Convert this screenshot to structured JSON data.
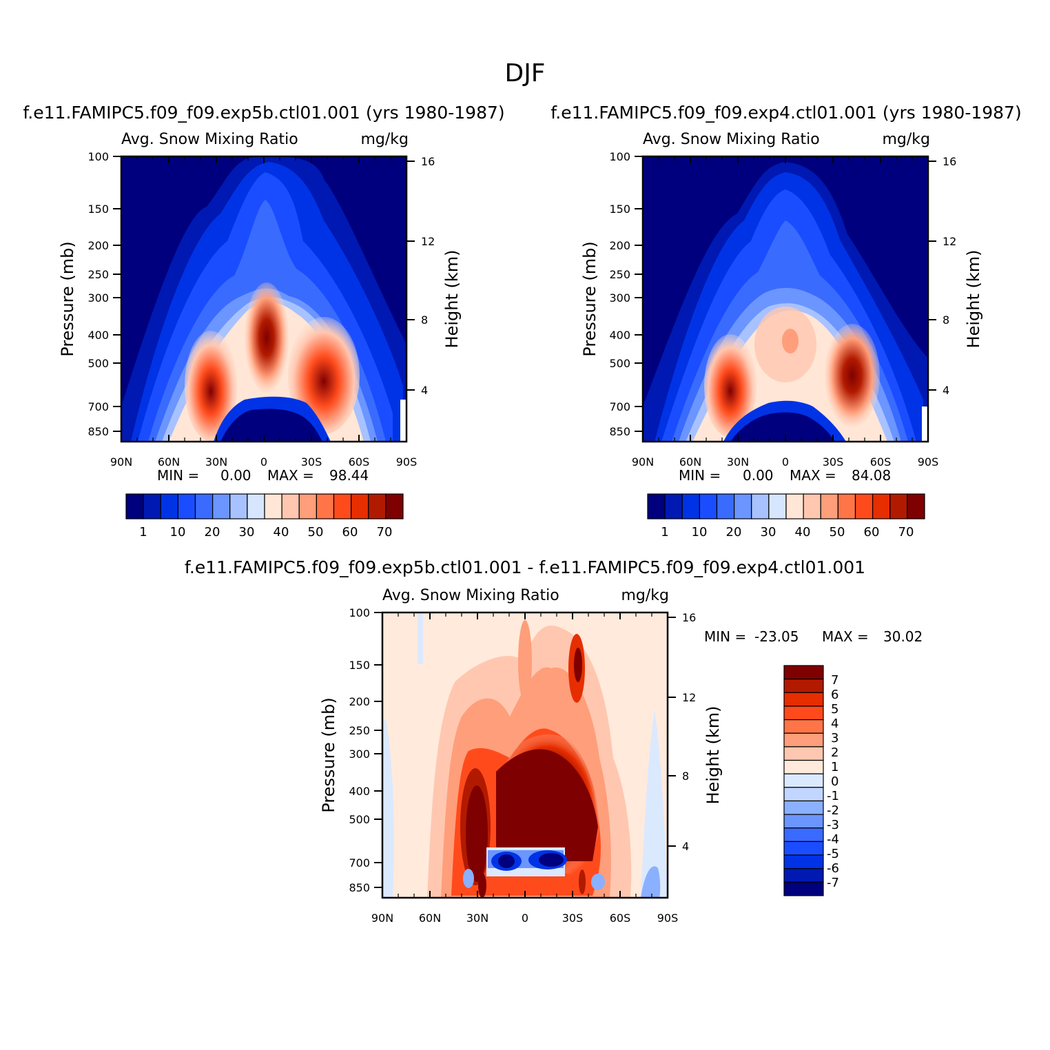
{
  "figure_title": "DJF",
  "colors": {
    "abs_levels": [
      "#00007f",
      "#0019b2",
      "#0033e5",
      "#1a4dff",
      "#3a6bff",
      "#6b95ff",
      "#a7c2ff",
      "#d6e6ff",
      "#ffe6d6",
      "#ffc7b0",
      "#ff9e7a",
      "#ff7548",
      "#ff4b1c",
      "#e62e00",
      "#b21a00",
      "#7f0000"
    ],
    "diff_levels": [
      "#00007f",
      "#0019b2",
      "#0033e5",
      "#1a4dff",
      "#3a6bff",
      "#6b95ff",
      "#8ab0ff",
      "#c2d6ff",
      "#dbe9ff",
      "#ffeadc",
      "#ffc7b0",
      "#ff9e7a",
      "#ff7548",
      "#ff4b1c",
      "#e62e00",
      "#b21a00",
      "#7f0000"
    ]
  },
  "chart_data": [
    {
      "type": "heatmap",
      "title": "f.e11.FAMIPC5.f09_f09.exp5b.ctl01.001 (yrs 1980-1987)",
      "left_subtitle": "Avg. Snow Mixing Ratio",
      "right_subtitle": "mg/kg",
      "xlabel": "",
      "ylabel": "Pressure (mb)",
      "ylabel_right": "Height (km)",
      "x_ticks": [
        "90N",
        "60N",
        "30N",
        "0",
        "30S",
        "60S",
        "90S"
      ],
      "y_ticks": [
        "100",
        "150",
        "200",
        "250",
        "300",
        "400",
        "500",
        "700",
        "850"
      ],
      "y_ticks_right": [
        "16",
        "12",
        "8",
        "4"
      ],
      "min_label": "MIN =",
      "min_value": "0.00",
      "max_label": "MAX =",
      "max_value": "98.44",
      "colorbar_labels": [
        "1",
        "10",
        "20",
        "30",
        "40",
        "50",
        "60",
        "70"
      ],
      "features": {
        "maxima_lat": [
          -35,
          0,
          35
        ],
        "peak_values": [
          70,
          75,
          80
        ],
        "near_zero_region": "0-700mb below 850 at equator"
      }
    },
    {
      "type": "heatmap",
      "title": "f.e11.FAMIPC5.f09_f09.exp4.ctl01.001 (yrs 1980-1987)",
      "left_subtitle": "Avg. Snow Mixing Ratio",
      "right_subtitle": "mg/kg",
      "xlabel": "",
      "ylabel": "Pressure (mb)",
      "ylabel_right": "Height (km)",
      "x_ticks": [
        "90N",
        "60N",
        "30N",
        "0",
        "30S",
        "60S",
        "90S"
      ],
      "y_ticks": [
        "100",
        "150",
        "200",
        "250",
        "300",
        "400",
        "500",
        "700",
        "850"
      ],
      "y_ticks_right": [
        "16",
        "12",
        "8",
        "4"
      ],
      "min_label": "MIN =",
      "min_value": "0.00",
      "max_label": "MAX =",
      "max_value": "84.08",
      "colorbar_labels": [
        "1",
        "10",
        "20",
        "30",
        "40",
        "50",
        "60",
        "70"
      ],
      "features": {
        "maxima_lat": [
          -40,
          40
        ],
        "peak_values": [
          70,
          75
        ]
      }
    },
    {
      "type": "heatmap",
      "title": "f.e11.FAMIPC5.f09_f09.exp5b.ctl01.001 - f.e11.FAMIPC5.f09_f09.exp4.ctl01.001",
      "left_subtitle": "Avg. Snow Mixing Ratio",
      "right_subtitle": "mg/kg",
      "xlabel": "",
      "ylabel": "Pressure (mb)",
      "ylabel_right": "Height (km)",
      "x_ticks": [
        "90N",
        "60N",
        "30N",
        "0",
        "30S",
        "60S",
        "90S"
      ],
      "y_ticks": [
        "100",
        "150",
        "200",
        "250",
        "300",
        "400",
        "500",
        "700",
        "850"
      ],
      "y_ticks_right": [
        "16",
        "12",
        "8",
        "4"
      ],
      "min_label": "MIN =",
      "min_value": "-23.05",
      "max_label": "MAX =",
      "max_value": "30.02",
      "colorbar_labels": [
        "7",
        "6",
        "5",
        "4",
        "3",
        "2",
        "1",
        "0",
        "-1",
        "-2",
        "-3",
        "-4",
        "-5",
        "-6",
        "-7"
      ]
    }
  ]
}
